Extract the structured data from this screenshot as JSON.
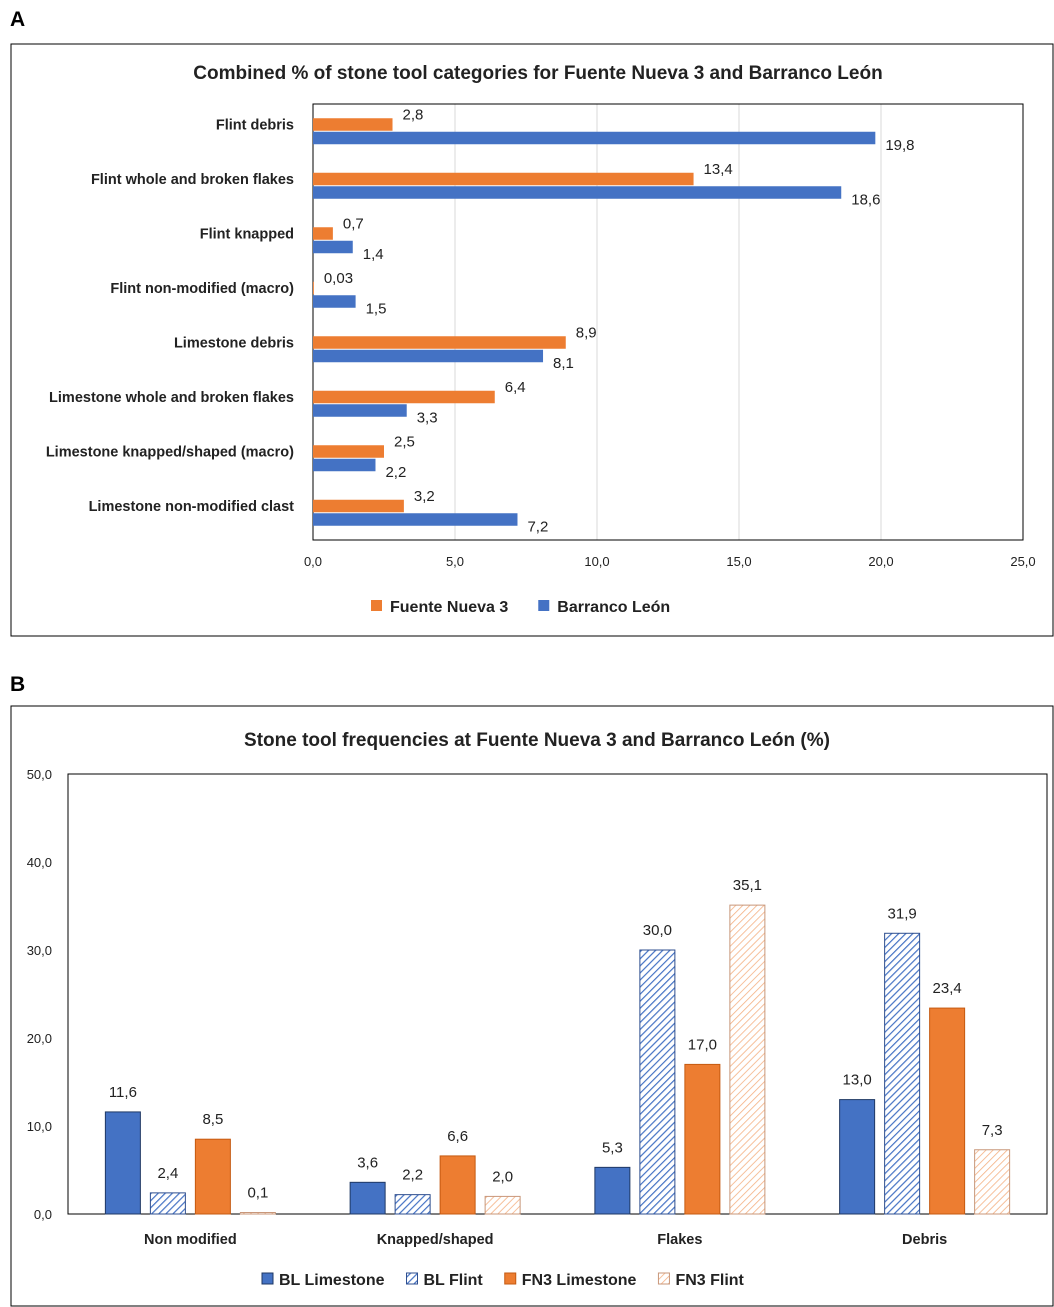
{
  "panels": {
    "a": "A",
    "b": "B"
  },
  "chart_data": [
    {
      "type": "bar",
      "orientation": "horizontal",
      "title": "Combined % of stone tool categories for Fuente Nueva 3 and Barranco León",
      "categories": [
        "Flint debris",
        "Flint whole and broken flakes",
        "Flint knapped",
        "Flint non-modified (macro)",
        "Limestone debris",
        "Limestone whole and broken flakes",
        "Limestone knapped/shaped (macro)",
        "Limestone non-modified clast"
      ],
      "series": [
        {
          "name": "Fuente Nueva 3",
          "color": "#ED7D31",
          "values": [
            2.8,
            13.4,
            0.7,
            0.03,
            8.9,
            6.4,
            2.5,
            3.2
          ],
          "labels": [
            "2,8",
            "13,4",
            "0,7",
            "0,03",
            "8,9",
            "6,4",
            "2,5",
            "3,2"
          ]
        },
        {
          "name": "Barranco León",
          "color": "#4472C4",
          "values": [
            19.8,
            18.6,
            1.4,
            1.5,
            8.1,
            3.3,
            2.2,
            7.2
          ],
          "labels": [
            "19,8",
            "18,6",
            "1,4",
            "1,5",
            "8,1",
            "3,3",
            "2,2",
            "7,2"
          ]
        }
      ],
      "xlim": [
        0,
        25
      ],
      "xticks": [
        "0,0",
        "5,0",
        "10,0",
        "15,0",
        "20,0",
        "25,0"
      ],
      "grid": "vertical",
      "legend": "bottom"
    },
    {
      "type": "bar",
      "orientation": "vertical",
      "title": "Stone tool frequencies at Fuente Nueva 3 and Barranco León (%)",
      "categories": [
        "Non modified",
        "Knapped/shaped",
        "Flakes",
        "Debris"
      ],
      "series": [
        {
          "name": "BL Limestone",
          "color": "#4472C4",
          "pattern": "solid",
          "values": [
            11.6,
            3.6,
            5.3,
            13.0
          ],
          "labels": [
            "11,6",
            "3,6",
            "5,3",
            "13,0"
          ]
        },
        {
          "name": "BL Flint",
          "color": "#4472C4",
          "pattern": "hatched",
          "values": [
            2.4,
            2.2,
            30.0,
            31.9
          ],
          "labels": [
            "2,4",
            "2,2",
            "30,0",
            "31,9"
          ]
        },
        {
          "name": "FN3 Limestone",
          "color": "#ED7D31",
          "pattern": "solid",
          "values": [
            8.5,
            6.6,
            17.0,
            23.4
          ],
          "labels": [
            "8,5",
            "6,6",
            "17,0",
            "23,4"
          ]
        },
        {
          "name": "FN3 Flint",
          "color": "#ED7D31",
          "pattern": "hatched",
          "values": [
            0.1,
            2.0,
            35.1,
            7.3
          ],
          "labels": [
            "0,1",
            "2,0",
            "35,1",
            "7,3"
          ]
        }
      ],
      "ylim": [
        0,
        50
      ],
      "yticks": [
        "0,0",
        "10,0",
        "20,0",
        "30,0",
        "40,0",
        "50,0"
      ],
      "grid": "none",
      "legend": "bottom"
    }
  ]
}
